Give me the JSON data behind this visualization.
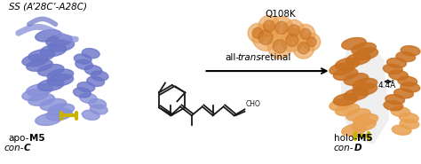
{
  "bg_color": "#ffffff",
  "blue_color": "#6b75c8",
  "blue_light": "#8890d8",
  "orange_color": "#c87020",
  "orange_light": "#e8a050",
  "yellow_color": "#c8b400",
  "text_color": "#1a1a1a",
  "figsize": [
    4.74,
    1.85
  ],
  "dpi": 100,
  "ss_label": "SS (A’28C’-A28C)",
  "label_apo1": "apo-",
  "label_apo2": "M5",
  "label_conc1": "con-",
  "label_conc2": "C",
  "label_holo1": "holo-",
  "label_holo2": "M5",
  "label_cond1": "con-",
  "label_cond2": "D",
  "label_q108k": "Q108K",
  "label_distance": "4.4Å",
  "retinal_all": "all-",
  "retinal_trans": "trans",
  "retinal_end": "-retinal"
}
